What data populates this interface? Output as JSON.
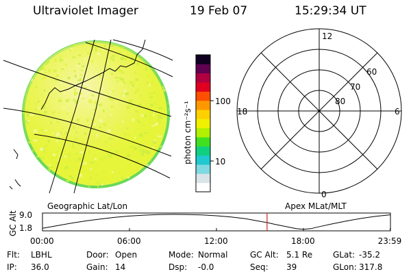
{
  "header": {
    "instrument": "Ultraviolet Imager",
    "date": "19 Feb 07",
    "time": "15:29:34 UT"
  },
  "colorbar": {
    "label": "photon cm⁻²s⁻¹",
    "ticks": [
      {
        "label": "100",
        "value": 100
      },
      {
        "label": "10",
        "value": 10
      }
    ],
    "range": [
      2.5,
      400
    ],
    "colors": [
      "#ffffff",
      "#d8e4e8",
      "#80d8e0",
      "#20c8d0",
      "#10d080",
      "#40e020",
      "#b0f000",
      "#f0f000",
      "#ffd000",
      "#ff9800",
      "#ff5000",
      "#e00020",
      "#b00040",
      "#600050",
      "#100020"
    ]
  },
  "map_panel": {
    "label": "Geographic Lat/Lon",
    "disk_colors": {
      "base": "#e6f53a",
      "bright": "#f6f7a0",
      "dim": "#c8ec40",
      "limb": "#6ad85a"
    }
  },
  "polar_panel": {
    "label": "Apex MLat/MLT",
    "mlt_labels": {
      "top": "12",
      "left": "18",
      "right": "6",
      "bottom": "0"
    },
    "lat_labels": [
      "60",
      "70",
      "80"
    ]
  },
  "chart_data": {
    "type": "line",
    "title": "",
    "ylabel": "GC Alt",
    "yticks": [
      "9.0",
      "1.8"
    ],
    "ylim": [
      1.8,
      9.0
    ],
    "xlim": [
      0,
      24
    ],
    "xticks": [
      {
        "label": "00:00",
        "value": 0
      },
      {
        "label": "06:00",
        "value": 6
      },
      {
        "label": "12:00",
        "value": 12
      },
      {
        "label": "18:00",
        "value": 18
      },
      {
        "label": "23:59",
        "value": 23.983
      }
    ],
    "series": [
      {
        "x": [
          0,
          1,
          2,
          3,
          4,
          5,
          6,
          7,
          8,
          9,
          10,
          11,
          12,
          13,
          14,
          15,
          15.49,
          16,
          17,
          17.5,
          18,
          18.5,
          19,
          20,
          21,
          22,
          23,
          23.983
        ],
        "values": [
          2.4,
          3.6,
          4.8,
          5.9,
          6.8,
          7.6,
          8.2,
          8.65,
          8.9,
          9.0,
          8.95,
          8.75,
          8.35,
          7.75,
          6.95,
          5.7,
          5.1,
          4.3,
          2.9,
          2.2,
          1.9,
          2.2,
          3.0,
          4.5,
          5.9,
          7.1,
          8.1,
          8.8
        ]
      }
    ],
    "current_time": 15.49,
    "marker_color": "#cc2020"
  },
  "footer": [
    [
      {
        "label": "Flt:",
        "value": "LBHL"
      },
      {
        "label": "Door:",
        "value": "Open"
      },
      {
        "label": "Mode:",
        "value": "Normal"
      },
      {
        "label": "GC Alt:",
        "value": "5.1 Re"
      },
      {
        "label": "GLat:",
        "value": "-35.2"
      }
    ],
    [
      {
        "label": "IP:",
        "value": "36.0"
      },
      {
        "label": "Gain:",
        "value": "14"
      },
      {
        "label": "Dsp:",
        "value": "-0.0"
      },
      {
        "label": "Seq:",
        "value": "39"
      },
      {
        "label": "GLon:",
        "value": "317.8"
      }
    ]
  ]
}
